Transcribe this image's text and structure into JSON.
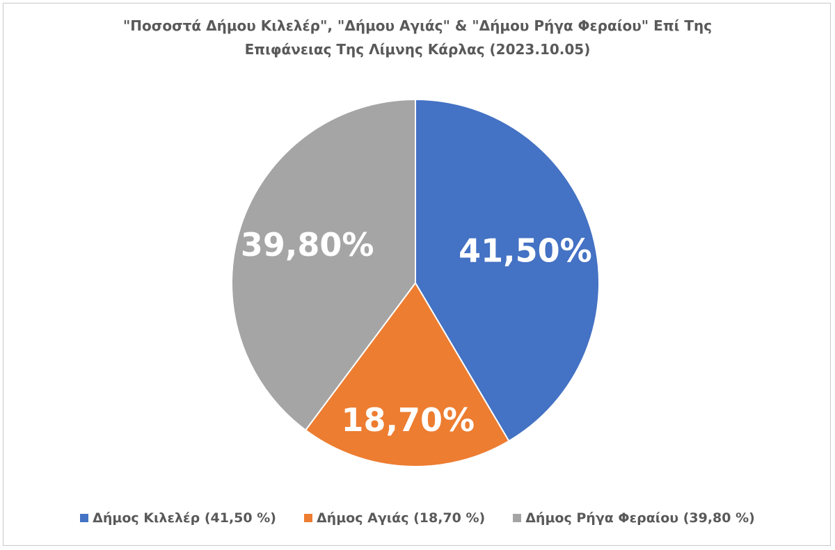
{
  "chart_data": {
    "type": "pie",
    "title": "\"Ποσοστά Δήμου Κιλελέρ\", \"Δήμου Αγιάς\" & \"Δήμου Ρήγα Φεραίου\" Επί Της Επιφάνειας Της Λίμνης Κάρλας (2023.10.05)",
    "categories": [
      "Δήμος Κιλελέρ (41,50 %)",
      "Δήμος Αγιάς (18,70 %)",
      "Δήμος Ρήγα Φεραίου (39,80 %)"
    ],
    "values": [
      41.5,
      18.7,
      39.8
    ],
    "value_labels": [
      "41,50%",
      "18,70%",
      "39,80%"
    ],
    "colors": [
      "#4472c4",
      "#ed7d31",
      "#a5a5a5"
    ],
    "legend": "bottom"
  }
}
